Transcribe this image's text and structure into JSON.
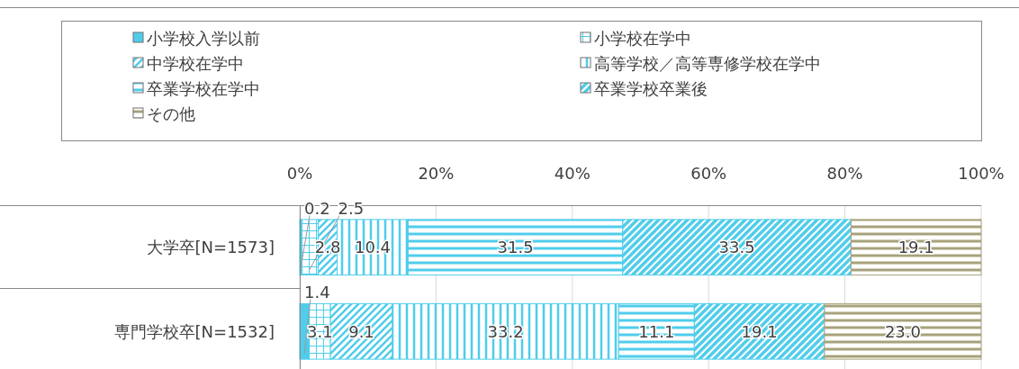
{
  "chart_data": {
    "type": "bar",
    "orientation": "horizontal",
    "stacked": true,
    "categories": [
      "大学卒[N=1573]",
      "専門学校卒[N=1532]"
    ],
    "series": [
      {
        "name": "小学校入学以前",
        "color": "#4fcdeb",
        "values": [
          0.2,
          1.4
        ],
        "value_labels": [
          "0.2",
          "1.4"
        ]
      },
      {
        "name": "小学校在学中",
        "color": "#4fcdeb",
        "values": [
          2.5,
          3.1
        ],
        "value_labels": [
          "2.5",
          "3.1"
        ]
      },
      {
        "name": "中学校在学中",
        "color": "#4fcdeb",
        "values": [
          2.8,
          9.1
        ],
        "value_labels": [
          "2.8",
          "9.1"
        ]
      },
      {
        "name": "高等学校／高等専修学校在学中",
        "color": "#4fcdeb",
        "values": [
          10.4,
          33.2
        ],
        "value_labels": [
          "10.4",
          "33.2"
        ]
      },
      {
        "name": "卒業学校在学中",
        "color": "#4fcdeb",
        "values": [
          31.5,
          11.1
        ],
        "value_labels": [
          "31.5",
          "11.1"
        ]
      },
      {
        "name": "卒業学校卒業後",
        "color": "#4fcdeb",
        "values": [
          33.5,
          19.1
        ],
        "value_labels": [
          "33.5",
          "19.1"
        ]
      },
      {
        "name": "その他",
        "color": "#a7a27a",
        "values": [
          19.1,
          23.0
        ],
        "value_labels": [
          "19.1",
          "23.0"
        ]
      }
    ],
    "xlim": [
      0,
      100
    ],
    "xticks": [
      {
        "value": 0,
        "label": "0%"
      },
      {
        "value": 20,
        "label": "20%"
      },
      {
        "value": 40,
        "label": "40%"
      },
      {
        "value": 60,
        "label": "60%"
      },
      {
        "value": 80,
        "label": "80%"
      },
      {
        "value": 100,
        "label": "100%"
      }
    ],
    "grid": "x",
    "legend": "top"
  }
}
